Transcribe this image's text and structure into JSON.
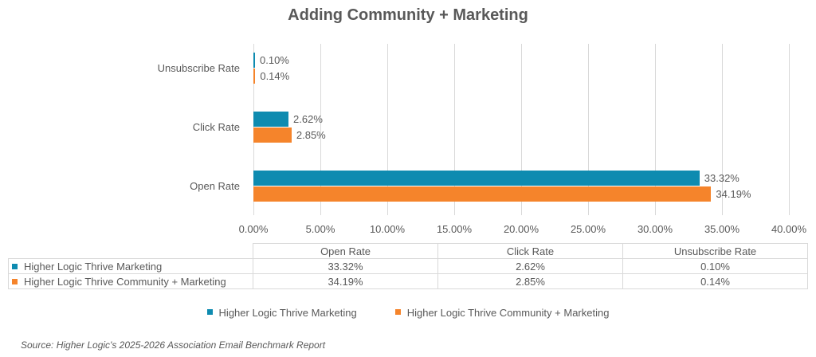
{
  "chart_data": {
    "type": "bar",
    "orientation": "horizontal",
    "title": "Adding Community + Marketing",
    "categories": [
      "Open Rate",
      "Click Rate",
      "Unsubscribe Rate"
    ],
    "series": [
      {
        "name": "Higher Logic Thrive Marketing",
        "color": "#0e8bb0",
        "values": [
          33.32,
          2.62,
          0.1
        ],
        "labels": [
          "33.32%",
          "2.62%",
          "0.10%"
        ]
      },
      {
        "name": "Higher Logic Thrive Community + Marketing",
        "color": "#f5842b",
        "values": [
          34.19,
          2.85,
          0.14
        ],
        "labels": [
          "34.19%",
          "2.85%",
          "0.14%"
        ]
      }
    ],
    "xlabel": "",
    "ylabel": "",
    "xlim": [
      0,
      40
    ],
    "x_ticks": [
      "0.00%",
      "5.00%",
      "10.00%",
      "15.00%",
      "20.00%",
      "25.00%",
      "30.00%",
      "35.00%",
      "40.00%"
    ],
    "grid": true,
    "legend_position": "bottom",
    "data_table": true
  },
  "table": {
    "headers": [
      "Open Rate",
      "Click Rate",
      "Unsubscribe Rate"
    ],
    "rows": [
      {
        "series": "Higher Logic Thrive Marketing",
        "values": [
          "33.32%",
          "2.62%",
          "0.10%"
        ]
      },
      {
        "series": "Higher Logic Thrive Community + Marketing",
        "values": [
          "34.19%",
          "2.85%",
          "0.14%"
        ]
      }
    ]
  },
  "legend": {
    "items": [
      "Higher Logic Thrive Marketing",
      "Higher Logic Thrive Community + Marketing"
    ]
  },
  "source": "Source: Higher Logic's 2025-2026 Association Email Benchmark Report"
}
